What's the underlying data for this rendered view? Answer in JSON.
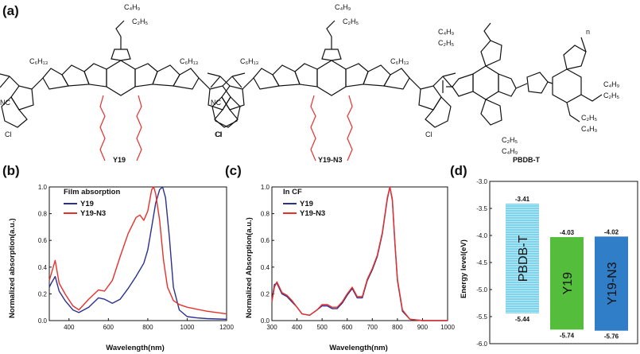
{
  "panels": {
    "a": "(a)",
    "b": "(b)",
    "c": "(c)",
    "d": "(d)"
  },
  "molecules": {
    "y19": {
      "name": "Y19",
      "labels": {
        "branch_top": "C₄H₉",
        "branch_bot": "C₂H₅",
        "hex_left": "C₆H₁₃",
        "hex_right": "C₆H₁₃",
        "cn": "NC",
        "cl": "Cl"
      }
    },
    "y19n3": {
      "name": "Y19-N3",
      "labels": {
        "branch_top": "C₄H₉",
        "branch_bot": "C₂H₅",
        "hex_left": "C₆H₁₃",
        "hex_right": "C₆H₁₃",
        "cn": "NC",
        "cl": "Cl"
      }
    },
    "pbdbt": {
      "name": "PBDB-T",
      "labels": {
        "c4": "C₄H₉",
        "c2": "C₂H₅",
        "n": "n"
      }
    }
  },
  "chart_data": [
    {
      "type": "line",
      "panel": "(b)",
      "annotation": "Film absorption",
      "xlabel": "Wavelength(nm)",
      "ylabel": "Normalized absorption(a.u.)",
      "xlim": [
        300,
        1200
      ],
      "ylim": [
        0,
        1.0
      ],
      "xticks": [
        400,
        600,
        800,
        1000,
        1200
      ],
      "yticks": [
        0.0,
        0.2,
        0.4,
        0.6,
        0.8,
        1.0
      ],
      "series": [
        {
          "name": "Y19",
          "color": "#2b2f8f",
          "x": [
            300,
            310,
            330,
            350,
            380,
            420,
            450,
            500,
            550,
            580,
            620,
            660,
            700,
            740,
            780,
            800,
            820,
            840,
            860,
            875,
            890,
            910,
            930,
            960,
            1000,
            1050,
            1100,
            1200
          ],
          "y": [
            0.25,
            0.28,
            0.33,
            0.22,
            0.15,
            0.08,
            0.06,
            0.1,
            0.17,
            0.16,
            0.13,
            0.16,
            0.24,
            0.33,
            0.43,
            0.53,
            0.7,
            0.88,
            0.98,
            1.0,
            0.92,
            0.62,
            0.25,
            0.08,
            0.03,
            0.02,
            0.015,
            0.01
          ]
        },
        {
          "name": "Y19-N3",
          "color": "#e8302b",
          "x": [
            300,
            310,
            330,
            350,
            380,
            420,
            450,
            500,
            550,
            580,
            620,
            660,
            700,
            740,
            760,
            780,
            800,
            820,
            830,
            840,
            860,
            880,
            900,
            930,
            960,
            1000,
            1100,
            1200
          ],
          "y": [
            0.3,
            0.35,
            0.45,
            0.28,
            0.2,
            0.11,
            0.08,
            0.16,
            0.23,
            0.22,
            0.3,
            0.48,
            0.65,
            0.77,
            0.79,
            0.75,
            0.82,
            0.98,
            1.0,
            0.95,
            0.75,
            0.45,
            0.25,
            0.15,
            0.12,
            0.1,
            0.07,
            0.05
          ]
        }
      ]
    },
    {
      "type": "line",
      "panel": "(c)",
      "annotation": "In CF",
      "xlabel": "Wavelength(nm)",
      "ylabel": "Normalized Absorption(a.u.)",
      "xlim": [
        300,
        1000
      ],
      "ylim": [
        0,
        1.0
      ],
      "xticks": [
        300,
        400,
        500,
        600,
        700,
        800,
        900,
        1000
      ],
      "yticks": [
        0.0,
        0.2,
        0.4,
        0.6,
        0.8,
        1.0
      ],
      "series": [
        {
          "name": "Y19",
          "color": "#2b2f8f",
          "x": [
            300,
            310,
            320,
            340,
            360,
            380,
            400,
            420,
            450,
            480,
            500,
            520,
            540,
            560,
            580,
            600,
            620,
            640,
            660,
            680,
            700,
            720,
            740,
            760,
            770,
            780,
            790,
            800,
            820,
            850,
            900,
            1000
          ],
          "y": [
            0.15,
            0.27,
            0.28,
            0.2,
            0.18,
            0.14,
            0.1,
            0.05,
            0.04,
            0.08,
            0.11,
            0.11,
            0.09,
            0.09,
            0.13,
            0.19,
            0.24,
            0.17,
            0.17,
            0.3,
            0.38,
            0.48,
            0.65,
            0.91,
            1.0,
            0.9,
            0.58,
            0.3,
            0.07,
            0.01,
            0.0,
            0.0
          ]
        },
        {
          "name": "Y19-N3",
          "color": "#e8302b",
          "x": [
            300,
            310,
            320,
            340,
            360,
            380,
            400,
            420,
            450,
            480,
            500,
            520,
            540,
            560,
            580,
            600,
            620,
            640,
            660,
            680,
            700,
            720,
            740,
            760,
            770,
            780,
            790,
            800,
            820,
            850,
            900,
            1000
          ],
          "y": [
            0.14,
            0.25,
            0.29,
            0.21,
            0.19,
            0.15,
            0.1,
            0.05,
            0.04,
            0.08,
            0.12,
            0.12,
            0.1,
            0.1,
            0.14,
            0.2,
            0.25,
            0.18,
            0.18,
            0.31,
            0.39,
            0.49,
            0.66,
            0.92,
            1.0,
            0.91,
            0.59,
            0.31,
            0.08,
            0.01,
            0.0,
            0.0
          ]
        }
      ]
    },
    {
      "type": "bar",
      "panel": "(d)",
      "ylabel": "Energy level(eV)",
      "ylim": [
        -6.0,
        -3.0
      ],
      "yticks": [
        -3.0,
        -3.5,
        -4.0,
        -4.5,
        -5.0,
        -5.5,
        -6.0
      ],
      "bars": [
        {
          "name": "PBDB-T",
          "lumo": -3.41,
          "homo": -5.44,
          "lumo_label": "-3.41",
          "homo_label": "-5.44",
          "color": "#7fd3ea",
          "pattern": "stripes"
        },
        {
          "name": "Y19",
          "lumo": -4.03,
          "homo": -5.74,
          "lumo_label": "-4.03",
          "homo_label": "-5.74",
          "color": "#55bd3c",
          "pattern": "solid"
        },
        {
          "name": "Y19-N3",
          "lumo": -4.02,
          "homo": -5.76,
          "lumo_label": "-4.02",
          "homo_label": "-5.76",
          "color": "#2f7ec7",
          "pattern": "solid"
        }
      ]
    }
  ]
}
